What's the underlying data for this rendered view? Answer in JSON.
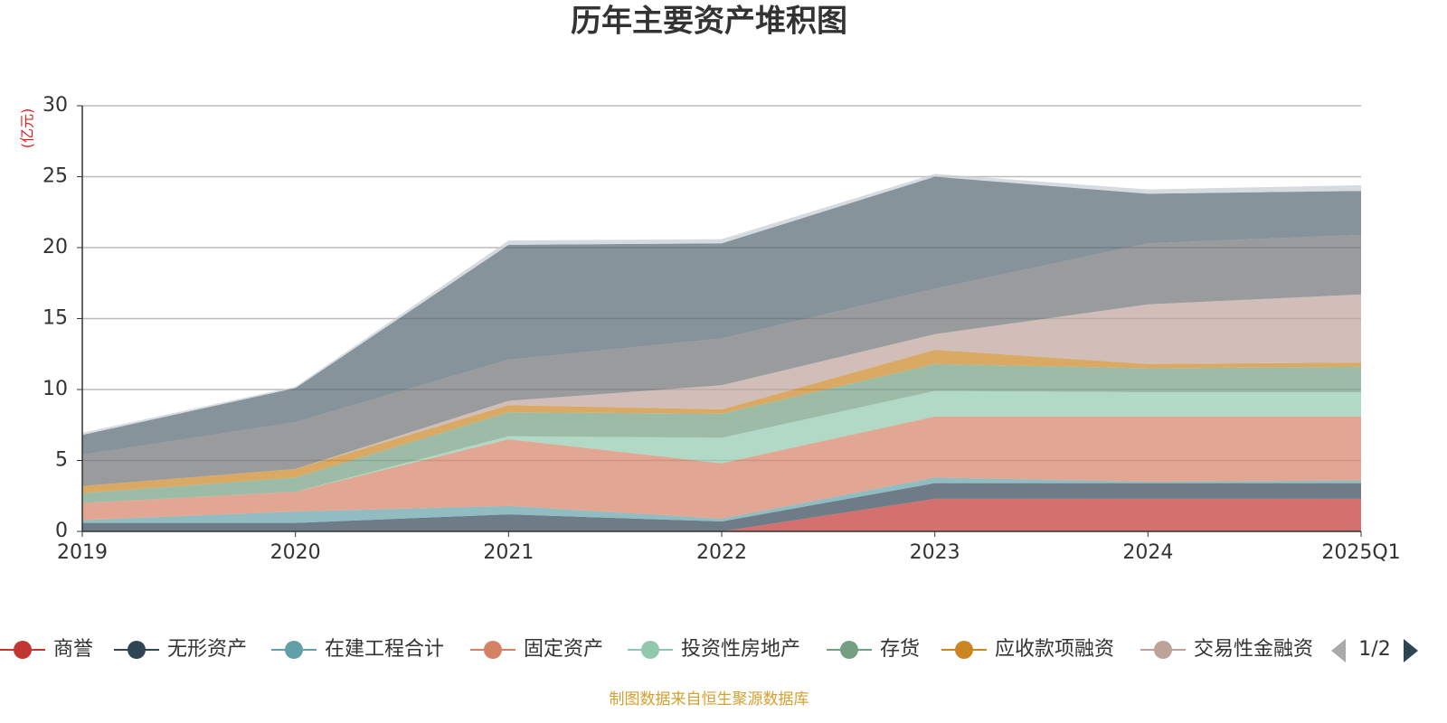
{
  "chart_data": {
    "type": "stacked_area",
    "title": "历年主要资产堆积图",
    "y_unit": "(亿元)",
    "categories": [
      "2019",
      "2020",
      "2021",
      "2022",
      "2023",
      "2024",
      "2025Q1"
    ],
    "ylim": [
      0,
      30
    ],
    "yticks": [
      0,
      5,
      10,
      15,
      20,
      25,
      30
    ],
    "grid": true,
    "series": [
      {
        "name": "商誉",
        "color": "#c23531",
        "values": [
          0,
          0,
          0,
          0,
          2.3,
          2.3,
          2.3
        ]
      },
      {
        "name": "无形资产",
        "color": "#2f4554",
        "values": [
          0.6,
          0.6,
          1.2,
          0.7,
          1.1,
          1.1,
          1.1
        ]
      },
      {
        "name": "在建工程合计",
        "color": "#61a0a8",
        "values": [
          0.2,
          0.8,
          0.6,
          0.2,
          0.4,
          0.1,
          0.2
        ]
      },
      {
        "name": "固定资产",
        "color": "#d48265",
        "values": [
          1.2,
          1.4,
          4.7,
          3.9,
          4.3,
          4.6,
          4.5
        ]
      },
      {
        "name": "投资性房地产",
        "color": "#91c7ae",
        "values": [
          0,
          0,
          0.2,
          1.8,
          1.8,
          1.7,
          1.7
        ]
      },
      {
        "name": "存货",
        "color": "#749f83",
        "values": [
          0.7,
          1.0,
          1.7,
          1.7,
          1.9,
          1.7,
          1.8
        ]
      },
      {
        "name": "应收款项融资",
        "color": "#ca8622",
        "values": [
          0.5,
          0.6,
          0.5,
          0.3,
          1.0,
          0.3,
          0.3
        ]
      },
      {
        "name": "交易性金融资",
        "color": "#bda29a",
        "values": [
          0,
          0,
          0.3,
          1.7,
          1.1,
          4.2,
          4.8
        ]
      },
      {
        "color": "#6e7074",
        "values": [
          2.2,
          3.3,
          2.9,
          3.3,
          3.2,
          4.3,
          4.2
        ]
      },
      {
        "color": "#546570",
        "values": [
          1.4,
          2.4,
          8.1,
          6.7,
          7.9,
          3.5,
          3.1
        ]
      },
      {
        "color": "#c4ccd3",
        "values": [
          0.15,
          0.1,
          0.3,
          0.3,
          0.2,
          0.3,
          0.4
        ]
      }
    ],
    "legend_page": "1/2",
    "source": "制图数据来自恒生聚源数据库"
  }
}
